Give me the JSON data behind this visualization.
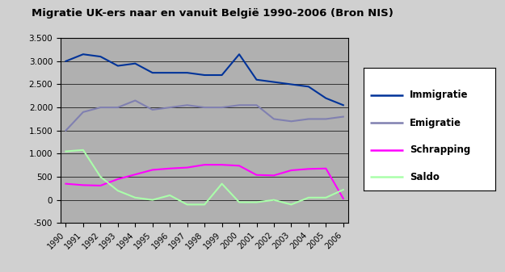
{
  "title": "Migratie UK-ers naar en vanuit België 1990-2006 (Bron NIS)",
  "years": [
    1990,
    1991,
    1992,
    1993,
    1994,
    1995,
    1996,
    1997,
    1998,
    1999,
    2000,
    2001,
    2002,
    2003,
    2004,
    2005,
    2006
  ],
  "immigratie": [
    3000,
    3150,
    3100,
    2900,
    2950,
    2750,
    2750,
    2750,
    2700,
    2700,
    3150,
    2600,
    2550,
    2500,
    2450,
    2200,
    2050
  ],
  "emigratie": [
    1500,
    1900,
    2000,
    2000,
    2150,
    1950,
    2000,
    2050,
    2000,
    2000,
    2050,
    2050,
    1750,
    1700,
    1750,
    1750,
    1800
  ],
  "schrapping": [
    350,
    320,
    310,
    450,
    550,
    650,
    680,
    700,
    760,
    760,
    740,
    540,
    530,
    640,
    670,
    680,
    30
  ],
  "saldo": [
    1050,
    1080,
    500,
    200,
    50,
    0,
    100,
    -100,
    -100,
    350,
    -50,
    -50,
    0,
    -100,
    50,
    50,
    220
  ],
  "immigratie_color": "#003399",
  "emigratie_color": "#8080b0",
  "schrapping_color": "#ff00ff",
  "saldo_color": "#aaffaa",
  "outer_bg_color": "#d0d0d0",
  "plot_bg_color": "#b0b0b0",
  "ylim": [
    -500,
    3500
  ],
  "yticks": [
    -500,
    0,
    500,
    1000,
    1500,
    2000,
    2500,
    3000,
    3500
  ],
  "ytick_labels": [
    "-500",
    "0",
    "500",
    "1.000",
    "1.500",
    "2.000",
    "2.500",
    "3.000",
    "3.500"
  ],
  "legend_labels": [
    "Immigratie",
    "Emigratie",
    "Schrapping",
    "Saldo"
  ]
}
